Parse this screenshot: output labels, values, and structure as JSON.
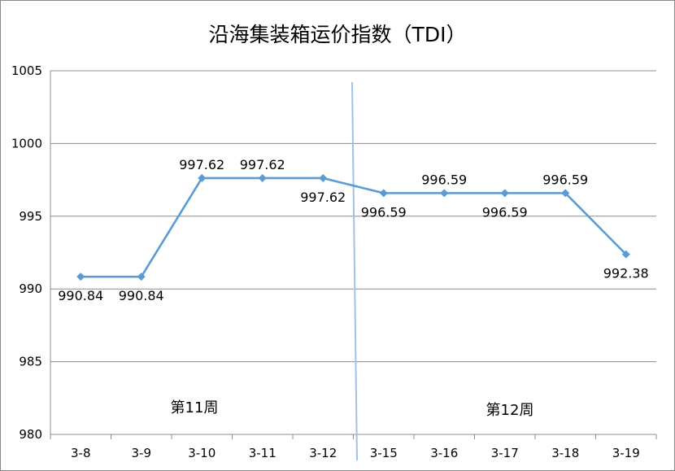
{
  "chart_data": {
    "type": "line",
    "title": "沿海集装箱运价指数（TDI）",
    "xlabel": "",
    "ylabel": "",
    "categories": [
      "3-8",
      "3-9",
      "3-10",
      "3-11",
      "3-12",
      "3-15",
      "3-16",
      "3-17",
      "3-18",
      "3-19"
    ],
    "series": [
      {
        "values": [
          990.84,
          990.84,
          997.62,
          997.62,
          997.62,
          996.59,
          996.59,
          996.59,
          996.59,
          992.38
        ],
        "data_labels": [
          "990.84",
          "990.84",
          "997.62",
          "997.62",
          "997.62",
          "996.59",
          "996.59",
          "996.59",
          "996.59",
          "992.38"
        ],
        "color": "#5b9bd5"
      }
    ],
    "ylim": [
      980,
      1005
    ],
    "yticks": [
      "980",
      "985",
      "990",
      "995",
      "1000",
      "1005"
    ],
    "grid": true,
    "legend": "none",
    "annotations": {
      "week_left": "第11周",
      "week_right": "第12周",
      "divider_color": "#9dc3e6"
    }
  }
}
